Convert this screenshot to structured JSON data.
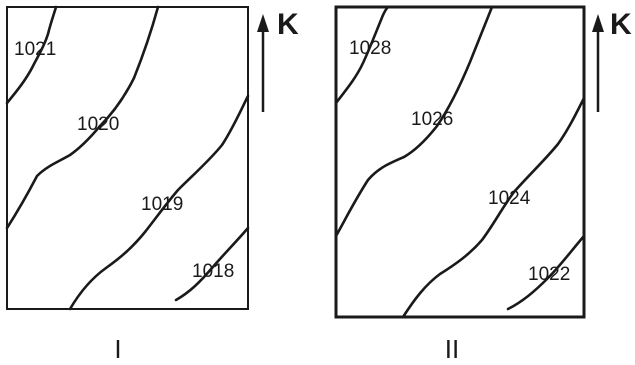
{
  "panels": [
    {
      "label": "I",
      "direction_label": "K",
      "isobars": [
        "1021",
        "1020",
        "1019",
        "1018"
      ]
    },
    {
      "label": "II",
      "direction_label": "K",
      "isobars": [
        "1028",
        "1026",
        "1024",
        "1022"
      ]
    }
  ]
}
